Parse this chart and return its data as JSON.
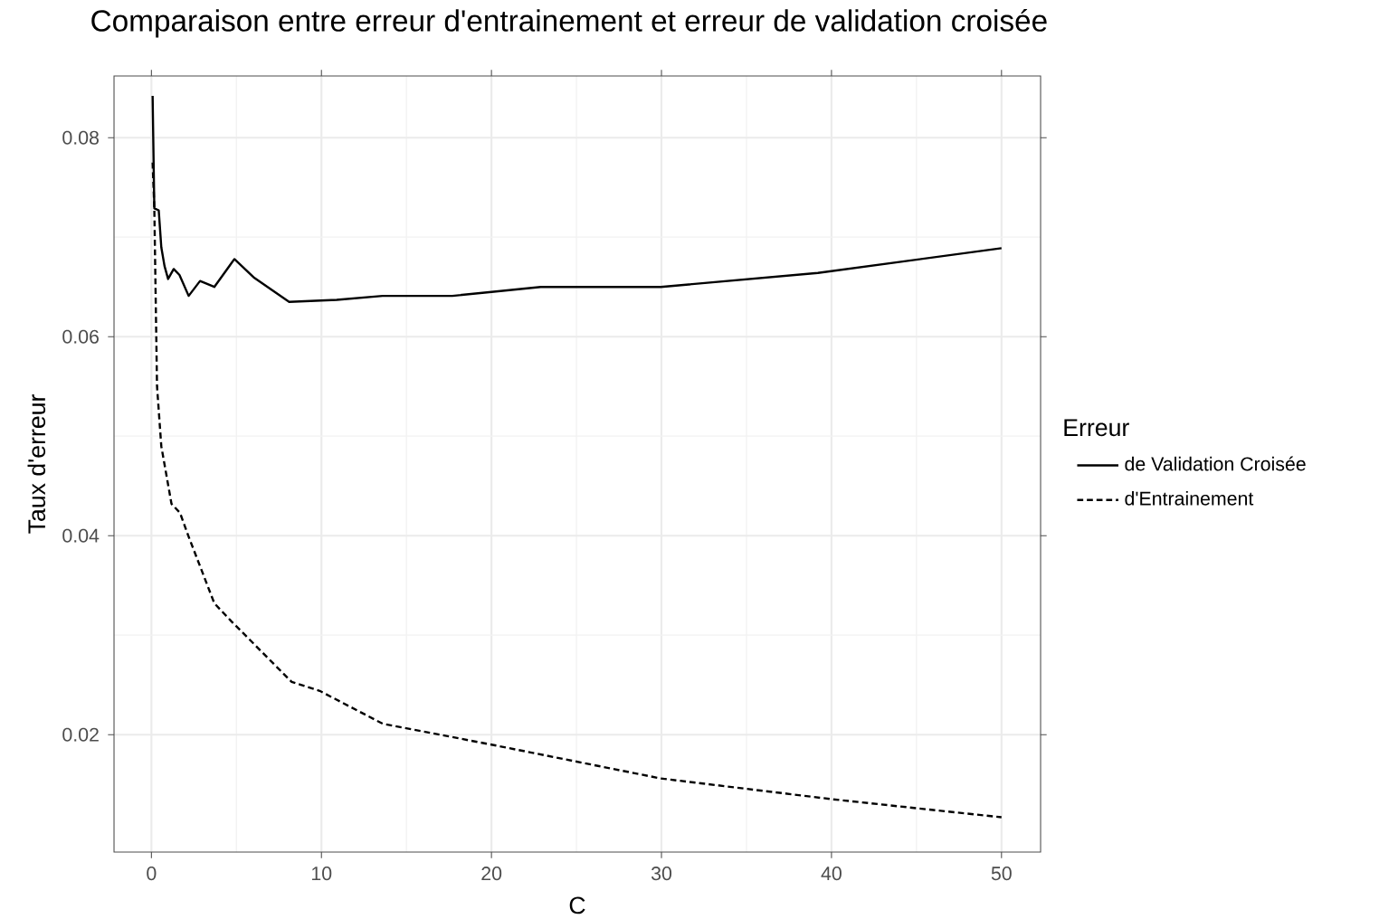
{
  "chart_data": {
    "type": "line",
    "title": "Comparaison entre erreur d'entrainement et erreur de validation croisée",
    "xlabel": "C",
    "ylabel": "Taux d'erreur",
    "legend_title": "Erreur",
    "legend": "right",
    "grid": true,
    "xlim": [
      -2.2,
      52.3
    ],
    "ylim": [
      0.0082,
      0.0862
    ],
    "xticks": [
      0,
      10,
      20,
      30,
      40,
      50
    ],
    "yticks": [
      0.02,
      0.04,
      0.06,
      0.08
    ],
    "series": [
      {
        "name": "de Validation Croisée",
        "color": "#000000",
        "line_style": "solid",
        "x": [
          0.07,
          0.17,
          0.43,
          0.58,
          0.77,
          0.98,
          1.31,
          1.65,
          2.19,
          2.86,
          3.7,
          4.88,
          6.06,
          8.1,
          10.9,
          13.6,
          17.7,
          20.0,
          22.9,
          29.96,
          39.2,
          50
        ],
        "values": [
          0.0842,
          0.0729,
          0.0727,
          0.069,
          0.0671,
          0.0658,
          0.0668,
          0.0662,
          0.0641,
          0.0656,
          0.065,
          0.0678,
          0.0659,
          0.0635,
          0.0637,
          0.0641,
          0.0641,
          0.0645,
          0.065,
          0.065,
          0.0664,
          0.0689
        ]
      },
      {
        "name": "d'Entrainement",
        "color": "#000000",
        "line_style": "dashed",
        "x": [
          0.07,
          0.17,
          0.33,
          0.58,
          1.18,
          1.68,
          2.19,
          3.7,
          4.7,
          8.25,
          9.9,
          13.6,
          20.0,
          29.96,
          40.1,
          50
        ],
        "values": [
          0.0775,
          0.0729,
          0.055,
          0.049,
          0.0432,
          0.0423,
          0.0399,
          0.0332,
          0.0314,
          0.0253,
          0.0244,
          0.0211,
          0.019,
          0.0156,
          0.0135,
          0.0117
        ]
      }
    ]
  }
}
